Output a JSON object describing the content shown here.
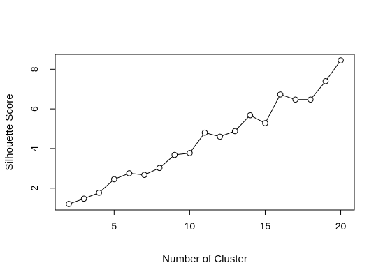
{
  "chart_data": {
    "type": "line",
    "title": "",
    "xlabel": "Number of Cluster",
    "ylabel": "Silhouette Score",
    "x": [
      2,
      3,
      4,
      5,
      6,
      7,
      8,
      9,
      10,
      11,
      12,
      13,
      14,
      15,
      16,
      17,
      18,
      19,
      20
    ],
    "series": [
      {
        "values": [
          1.2,
          1.47,
          1.77,
          2.45,
          2.75,
          2.67,
          3.02,
          3.68,
          3.77,
          4.8,
          4.6,
          4.88,
          5.68,
          5.28,
          6.73,
          6.47,
          6.47,
          7.4,
          8.45
        ]
      }
    ],
    "xlim": [
      1.1,
      20.9
    ],
    "ylim": [
      0.9,
      8.75
    ],
    "xticks": [
      "5",
      "10",
      "15",
      "20"
    ],
    "yticks": [
      "2",
      "4",
      "6",
      "8"
    ],
    "markers": "open-circle",
    "grid": false,
    "legend": "none",
    "colors": {
      "line": "#000000",
      "marker": "#000000",
      "background": "#ffffff"
    }
  }
}
